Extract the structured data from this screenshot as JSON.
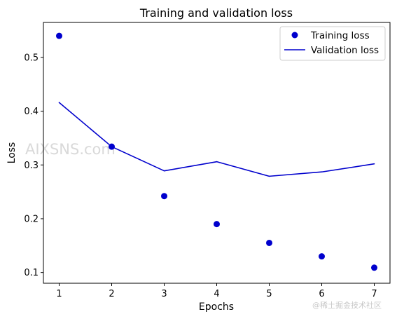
{
  "chart_data": {
    "type": "scatter+line",
    "title": "Training and validation loss",
    "xlabel": "Epochs",
    "ylabel": "Loss",
    "xlim": [
      0.7,
      7.3
    ],
    "ylim": [
      0.08,
      0.565
    ],
    "xticks": [
      1,
      2,
      3,
      4,
      5,
      6,
      7
    ],
    "yticks": [
      0.1,
      0.2,
      0.3,
      0.4,
      0.5
    ],
    "grid": false,
    "legend_position": "top-right",
    "series": [
      {
        "name": "Training loss",
        "kind": "scatter",
        "color": "#0000cd",
        "x": [
          1,
          2,
          3,
          4,
          5,
          6,
          7
        ],
        "y": [
          0.54,
          0.334,
          0.242,
          0.19,
          0.155,
          0.13,
          0.109
        ]
      },
      {
        "name": "Validation loss",
        "kind": "line",
        "color": "#0000cd",
        "x": [
          1,
          2,
          3,
          4,
          5,
          6,
          7
        ],
        "y": [
          0.416,
          0.334,
          0.289,
          0.306,
          0.279,
          0.287,
          0.302
        ]
      }
    ]
  },
  "watermark": "AIXSNS.com",
  "credit": "@稀土掘金技术社区"
}
